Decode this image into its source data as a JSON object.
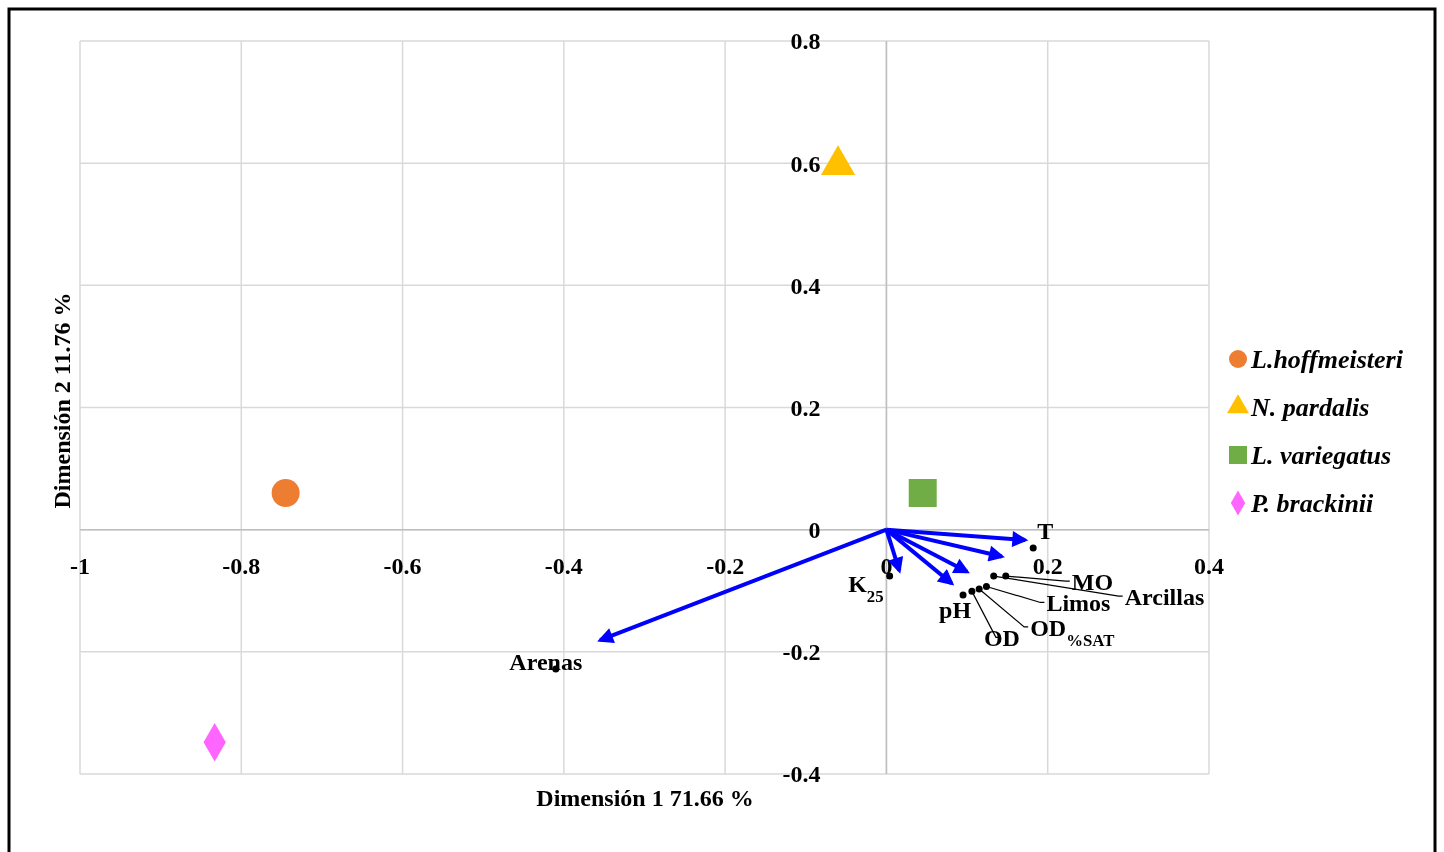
{
  "chart_data": {
    "type": "scatter",
    "xlabel": "Dimensión 1 71.66 %",
    "ylabel": "Dimensión 2 11.76 %",
    "xlim": [
      -1,
      0.4
    ],
    "xticks": [
      -1,
      -0.8,
      -0.6,
      -0.4,
      -0.2,
      0,
      0.2,
      0.4
    ],
    "ylim": [
      -0.4,
      0.8
    ],
    "yticks": [
      -0.4,
      -0.2,
      0,
      0.2,
      0.4,
      0.6,
      0.8
    ],
    "grid": true,
    "legend": "right",
    "series": [
      {
        "name": "L.hoffmeisteri",
        "color": "#ed7d31",
        "marker": "circle",
        "x": [
          -0.745
        ],
        "values": [
          0.06
        ]
      },
      {
        "name": "N. pardalis",
        "color": "#ffc000",
        "marker": "triangle",
        "x": [
          -0.06
        ],
        "values": [
          0.597
        ]
      },
      {
        "name": "L. variegatus",
        "color": "#70ad47",
        "marker": "square",
        "x": [
          0.045
        ],
        "values": [
          0.06
        ]
      },
      {
        "name": "P. brackinii",
        "color": "#ff66ff",
        "marker": "diamond",
        "x": [
          -0.833
        ],
        "values": [
          -0.348
        ]
      },
      {
        "type": "line",
        "color": "#0000ff",
        "marker": "none",
        "x": [
          0,
          0.172
        ],
        "values": [
          0,
          -0.017
        ]
      },
      {
        "type": "line",
        "color": "#0000ff",
        "marker": "none",
        "x": [
          0,
          0.143
        ],
        "values": [
          0,
          -0.044
        ]
      },
      {
        "type": "line",
        "color": "#0000ff",
        "marker": "none",
        "x": [
          0,
          0.1
        ],
        "values": [
          0,
          -0.069
        ]
      },
      {
        "type": "line",
        "color": "#0000ff",
        "marker": "none",
        "x": [
          0,
          0.081
        ],
        "values": [
          0,
          -0.088
        ]
      },
      {
        "type": "line",
        "color": "#0000ff",
        "marker": "none",
        "x": [
          0,
          0.016
        ],
        "values": [
          0,
          -0.067
        ]
      },
      {
        "type": "line",
        "color": "#0000ff",
        "marker": "none",
        "x": [
          0,
          -0.355
        ],
        "values": [
          0,
          -0.181
        ]
      },
      {
        "color": "#000000",
        "marker": "circle",
        "x": [
          0.182,
          0.004,
          0.148,
          0.133,
          0.124,
          0.115,
          0.106,
          0.095,
          -0.41
        ],
        "values": [
          -0.03,
          -0.076,
          -0.076,
          -0.076,
          -0.093,
          -0.097,
          -0.101,
          -0.107,
          -0.228
        ]
      }
    ],
    "annotations": [
      {
        "text": "T",
        "x": 0.182,
        "y": -0.03
      },
      {
        "text": "K$_{25}$",
        "x": 0.004,
        "y": -0.076
      },
      {
        "text": "MO",
        "x": 0.148,
        "y": -0.076
      },
      {
        "text": "Arcillas",
        "x": 0.133,
        "y": -0.076
      },
      {
        "text": "Limos",
        "x": 0.124,
        "y": -0.093
      },
      {
        "text": "OD$_{%SAT}$",
        "x": 0.115,
        "y": -0.097
      },
      {
        "text": "OD",
        "x": 0.106,
        "y": -0.101
      },
      {
        "text": "pH",
        "x": 0.095,
        "y": -0.107
      },
      {
        "text": "Arenas",
        "x": -0.41,
        "y": -0.228
      }
    ]
  }
}
